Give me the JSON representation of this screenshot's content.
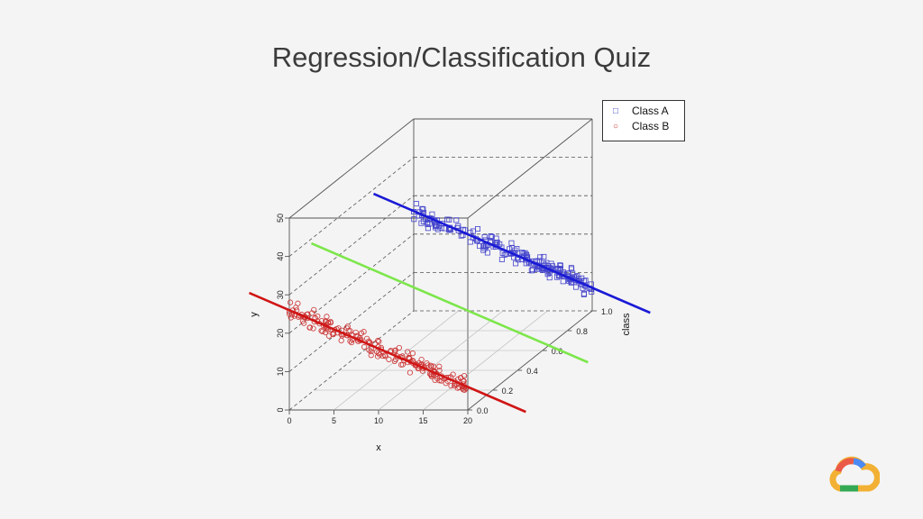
{
  "slide": {
    "title": "Regression/Classification Quiz"
  },
  "chart_data": {
    "type": "scatter",
    "projection": "3d",
    "xlabel": "x",
    "ylabel": "y",
    "zlabel": "class",
    "xlim": [
      0,
      20
    ],
    "ylim": [
      0,
      50
    ],
    "zlim": [
      0,
      1
    ],
    "x_ticks": [
      "0",
      "5",
      "10",
      "15",
      "20"
    ],
    "y_ticks": [
      "0",
      "10",
      "20",
      "30",
      "40",
      "50"
    ],
    "z_ticks": [
      "0.0",
      "0.2",
      "0.4",
      "0.6",
      "0.8",
      "1.0"
    ],
    "legend_position": "top-right",
    "series": [
      {
        "name": "Class A",
        "marker": "square",
        "color": "#4444cc",
        "class_value": 1,
        "points": 200
      },
      {
        "name": "Class B",
        "marker": "circle",
        "color": "#cc3333",
        "class_value": 0,
        "points": 200
      }
    ],
    "lines": [
      {
        "color": "#1a1ad6",
        "class_value": 1,
        "slope": -1,
        "intercept": 26
      },
      {
        "color": "#d01515",
        "class_value": 0,
        "slope": -1,
        "intercept": 26
      },
      {
        "color": "#7ce64a",
        "class_value": 0.5,
        "slope": -1,
        "intercept": 26
      }
    ]
  },
  "colors": {
    "background": "#f4f4f4",
    "title": "#3c3c3c",
    "class_a": "#4444cc",
    "class_b": "#cc3333",
    "regression_a": "#1a1ad6",
    "regression_b": "#d01515",
    "boundary": "#7ce64a"
  },
  "branding": {
    "logo": "google-cloud-icon"
  }
}
